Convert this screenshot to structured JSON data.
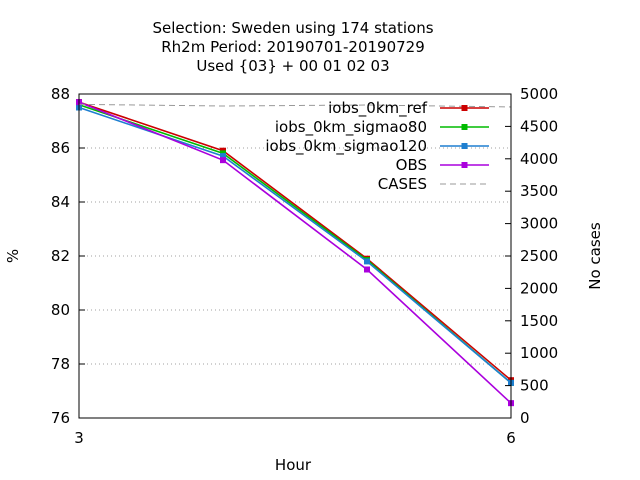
{
  "chart_data": {
    "type": "line",
    "title_lines": [
      "Selection: Sweden using   174 stations",
      "Rh2m   Period: 20190701-20190729",
      "Used {03} + 00 01 02 03"
    ],
    "xlabel": "Hour",
    "ylabel": "%",
    "y2label": "No cases",
    "x_ticks": [
      "3",
      "6"
    ],
    "xlim": [
      3,
      6
    ],
    "ylim": [
      76,
      88
    ],
    "y_ticks": [
      "76",
      "78",
      "80",
      "82",
      "84",
      "86",
      "88"
    ],
    "y2lim": [
      0,
      5000
    ],
    "y2_ticks": [
      "0",
      "500",
      "1000",
      "1500",
      "2000",
      "2500",
      "3000",
      "3500",
      "4000",
      "4500",
      "5000"
    ],
    "grid": true,
    "legend_position": "top-right",
    "x": [
      3,
      4,
      5,
      6
    ],
    "series": [
      {
        "name": "iobs_0km_ref",
        "color": "#cc0000",
        "axis": "y",
        "values": [
          87.7,
          85.9,
          81.9,
          77.4
        ]
      },
      {
        "name": "iobs_0km_sigmao80",
        "color": "#00bb00",
        "axis": "y",
        "values": [
          87.6,
          85.8,
          81.85,
          77.3
        ]
      },
      {
        "name": "iobs_0km_sigmao120",
        "color": "#1e7fd0",
        "axis": "y",
        "values": [
          87.5,
          85.7,
          81.8,
          77.3
        ]
      },
      {
        "name": "OBS",
        "color": "#aa00dd",
        "axis": "y",
        "values": [
          87.7,
          85.55,
          81.5,
          76.55
        ]
      },
      {
        "name": "CASES",
        "color": "#999999",
        "axis": "y2",
        "dashed": true,
        "values": [
          4840,
          4815,
          4830,
          4800
        ]
      }
    ]
  }
}
